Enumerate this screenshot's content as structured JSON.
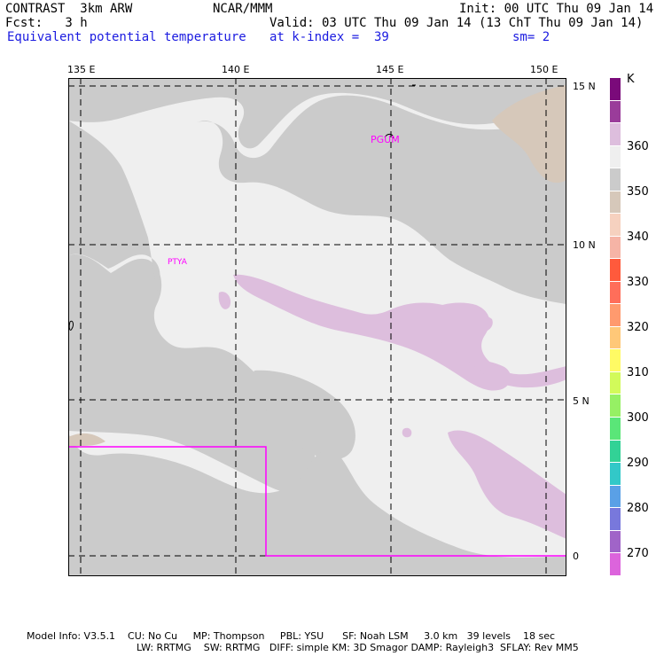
{
  "header": {
    "model": "CONTRAST  3km ARW",
    "org": "NCAR/MMM",
    "init": "Init: 00 UTC Thu 09 Jan 14",
    "fcst": "Fcst:   3 h",
    "valid": "Valid: 03 UTC Thu 09 Jan 14 (13 ChT Thu 09 Jan 14)",
    "field": "Equivalent potential temperature",
    "level": "at k-index =  39",
    "smooth": "sm= 2"
  },
  "map": {
    "lon_labels": [
      "135 E",
      "140 E",
      "145 E",
      "150 E"
    ],
    "lat_labels": [
      "15 N",
      "10 N",
      "5 N",
      "0"
    ],
    "stations": [
      "PGUM",
      "PTYA"
    ],
    "colors": {
      "background": "#efefef",
      "high": "#cbcbcb",
      "mid": "#ddbedd",
      "tan": "#d6c8ba",
      "magenta": "#ff00ff"
    }
  },
  "legend": {
    "unit": "K",
    "labels": [
      "360",
      "350",
      "340",
      "330",
      "320",
      "310",
      "300",
      "290",
      "280",
      "270"
    ],
    "colors": [
      "#7a0a7a",
      "#9a3c9a",
      "#ddbedd",
      "#efefef",
      "#cbcbcb",
      "#d6c8ba",
      "#f6d1bf",
      "#f6b4a6",
      "#ff5a3c",
      "#ff6e5a",
      "#ff9a6e",
      "#ffc878",
      "#fffa64",
      "#d2fa5a",
      "#96f064",
      "#5ae678",
      "#32d296",
      "#32c8c8",
      "#5aa0e6",
      "#7878dc",
      "#a064c8",
      "#dc64dc"
    ]
  },
  "footer": {
    "line1": "Model Info: V3.5.1    CU: No Cu     MP: Thompson     PBL: YSU      SF: Noah LSM     3.0 km   39 levels    18 sec",
    "line2": "LW: RRTMG    SW: RRTMG   DIFF: simple KM: 3D Smagor DAMP: Rayleigh3  SFLAY: Rev MM5"
  }
}
